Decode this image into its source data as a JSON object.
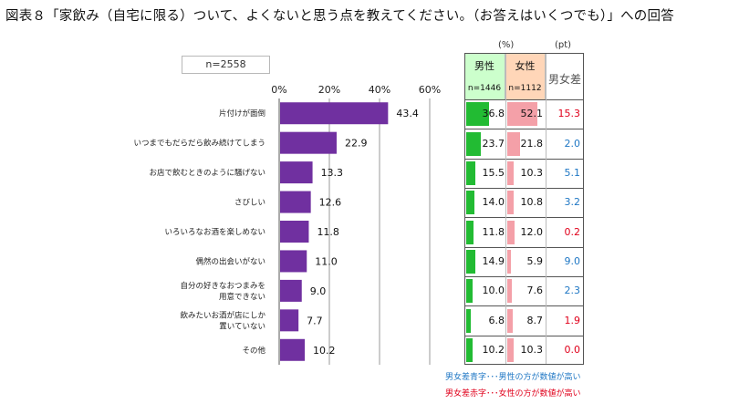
{
  "title": "図表８「家飲み（自宅に限る）ついて、よくないと思う点を教えてください。（お答えはいくつでも）」への回答",
  "sample_label": "n=2558",
  "table": {
    "unit_pct": "(%)",
    "unit_pt": "(pt)",
    "male_header": "男性",
    "male_n": "n=1446",
    "female_header": "女性",
    "female_n": "n=1112",
    "diff_header": "男女差"
  },
  "colors": {
    "bar": "#7030a0",
    "male_bar": "#22bb33",
    "female_bar": "#f4a0a8",
    "blue": "#1f77c4",
    "red": "#e0001b"
  },
  "legend": {
    "blue_note": "男女差青字･･･男性の方が数値が高い",
    "red_note": "男女差赤字･･･女性の方が数値が高い"
  },
  "chart_data": {
    "type": "bar",
    "orientation": "horizontal",
    "xlim": [
      0,
      60
    ],
    "ticks": [
      "0%",
      "20%",
      "40%",
      "60%"
    ],
    "categories": [
      "片付けが面倒",
      "いつまでもだらだら飲み続けてしまう",
      "お店で飲むときのように騒げない",
      "さびしい",
      "いろいろなお酒を楽しめない",
      "偶然の出会いがない",
      "自分の好きなおつまみを\n用意できない",
      "飲みたいお酒が店にしか\n置いていない",
      "その他"
    ],
    "values": [
      43.4,
      22.9,
      13.3,
      12.6,
      11.8,
      11.0,
      9.0,
      7.7,
      10.2
    ],
    "value_labels": [
      "43.4",
      "22.9",
      "13.3",
      "12.6",
      "11.8",
      "11.0",
      "9.0",
      "7.7",
      "10.2"
    ],
    "male": [
      "36.8",
      "23.7",
      "15.5",
      "14.0",
      "11.8",
      "14.9",
      "10.0",
      "6.8",
      "10.2"
    ],
    "female": [
      "52.1",
      "21.8",
      "10.3",
      "10.8",
      "12.0",
      "5.9",
      "7.6",
      "8.7",
      "10.3"
    ],
    "diff": [
      "15.3",
      "2.0",
      "5.1",
      "3.2",
      "0.2",
      "9.0",
      "2.3",
      "1.9",
      "0.0"
    ],
    "diff_color": [
      "red",
      "blue",
      "blue",
      "blue",
      "red",
      "blue",
      "blue",
      "red",
      "red"
    ]
  }
}
